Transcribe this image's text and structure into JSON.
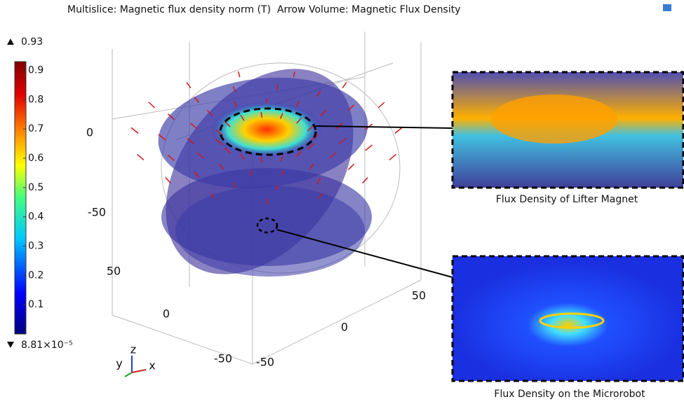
{
  "title": "Multislice: Magnetic flux density norm (T)  Arrow Volume: Magnetic Flux Density",
  "colorbar": {
    "max": 0.93,
    "min": {
      "value": 8.81e-05,
      "label": "8.81×10⁻⁵"
    },
    "ticks": [
      0.1,
      0.2,
      0.3,
      0.4,
      0.5,
      0.6,
      0.7,
      0.8,
      0.9
    ]
  },
  "axis_labels": [
    0,
    -50,
    50,
    0,
    -50,
    -50,
    0,
    50
  ],
  "triad": [
    "y",
    "z",
    "x"
  ],
  "insets": [
    {
      "caption": "Flux Density of Lifter Magnet"
    },
    {
      "caption": "Flux Density on the Microrobot"
    }
  ]
}
